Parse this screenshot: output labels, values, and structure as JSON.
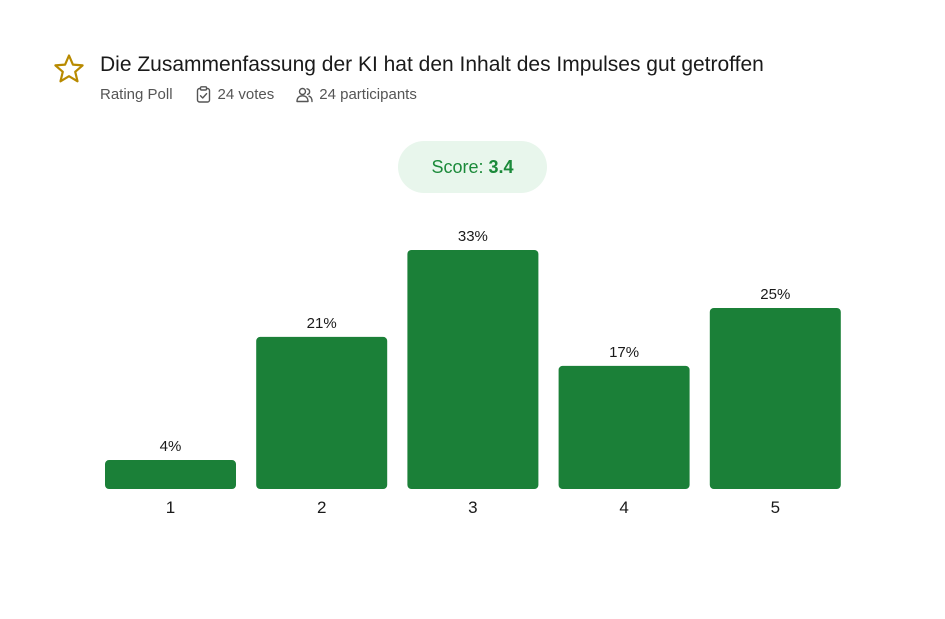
{
  "title": "Die Zusammenfassung der KI hat den Inhalt des Impulses gut getroffen",
  "meta": {
    "poll_type": "Rating Poll",
    "votes": "24 votes",
    "participants": "24 participants"
  },
  "score": {
    "label": "Score:",
    "value": "3.4"
  },
  "icons": {
    "title": "star-icon",
    "votes": "clipboard-check-icon",
    "participants": "users-icon"
  },
  "colors": {
    "bar": "#1b8038",
    "star": "#b88a00",
    "score_text": "#1b8a3a",
    "score_bg": "#e8f6ec"
  },
  "chart_data": {
    "type": "bar",
    "categories": [
      "1",
      "2",
      "3",
      "4",
      "5"
    ],
    "values": [
      4,
      21,
      33,
      17,
      25
    ],
    "value_labels": [
      "4%",
      "21%",
      "33%",
      "17%",
      "25%"
    ],
    "ylim": [
      0,
      33
    ],
    "grid": false,
    "legend": "none"
  }
}
